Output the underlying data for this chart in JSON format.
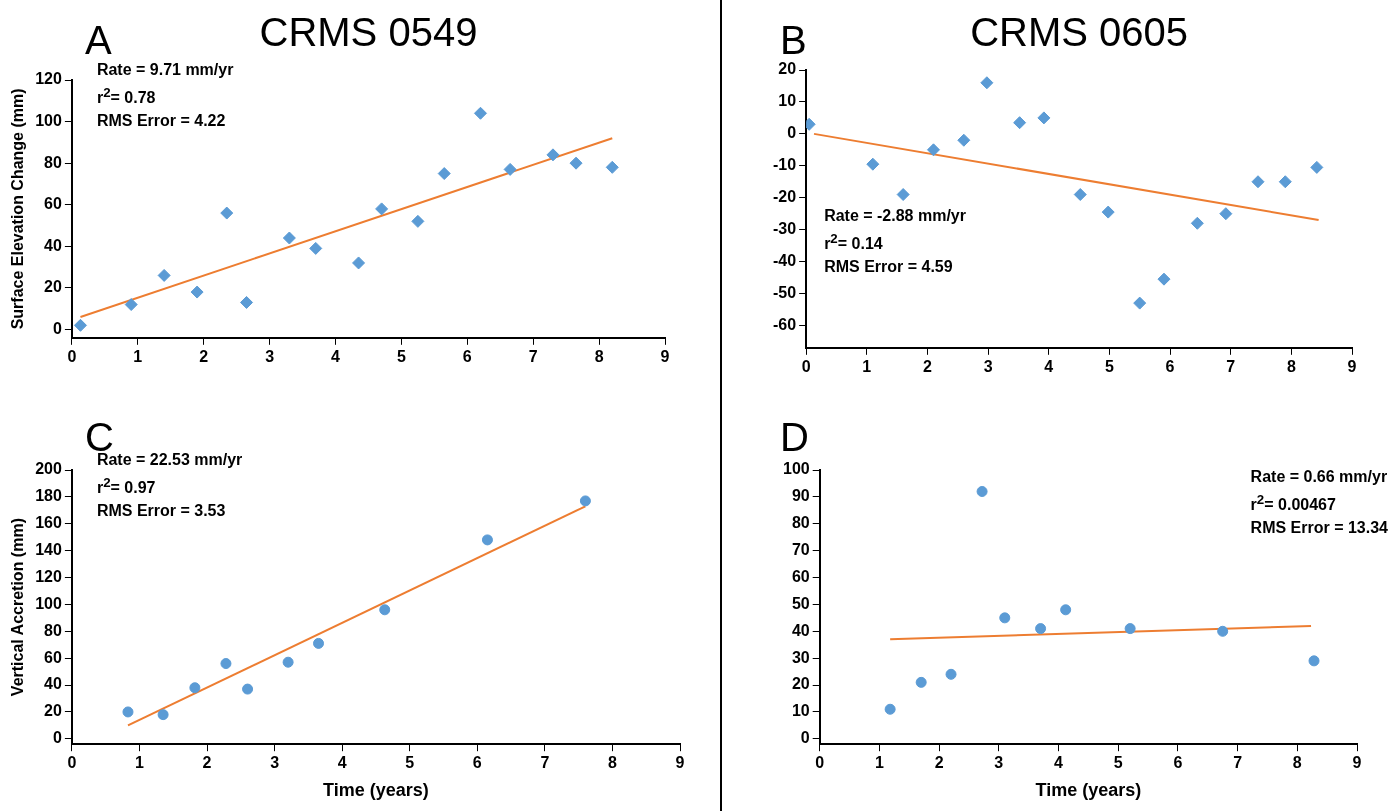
{
  "chart_data": [
    {
      "type": "scatter",
      "title": "CRMS 0549",
      "ylabel": "Surface Elevation Change (mm)",
      "marker": "diamond",
      "grid": false,
      "legend": false,
      "annotations": [
        "A",
        "Rate = 9.71 mm/yr",
        "r$^{2}$= 0.78",
        "RMS Error = 4.22"
      ],
      "xlim": [
        0,
        9
      ],
      "xticks": [
        0,
        1,
        2,
        3,
        4,
        5,
        6,
        7,
        8,
        9
      ],
      "ylim": [
        -4,
        120
      ],
      "yticks": [
        0,
        20,
        40,
        60,
        80,
        100,
        120
      ],
      "series": [
        {
          "color": "#5b9bd5",
          "x": [
            0.13,
            0.9,
            1.4,
            1.9,
            2.35,
            2.65,
            3.3,
            3.7,
            4.35,
            4.7,
            5.25,
            5.65,
            6.2,
            6.65,
            7.3,
            7.65,
            8.2
          ],
          "values": [
            2,
            12,
            26,
            18,
            56,
            13,
            44,
            39,
            32,
            58,
            52,
            75,
            104,
            77,
            84,
            80,
            78
          ]
        },
        {
          "type": "line",
          "marker": "none",
          "color": "#ed7d31",
          "x": [
            0.13,
            8.2
          ],
          "values": [
            6,
            92
          ]
        }
      ]
    },
    {
      "type": "scatter",
      "title": "CRMS 0605",
      "marker": "diamond",
      "grid": false,
      "legend": false,
      "annotations": [
        "B",
        "Rate = -2.88 mm/yr",
        "r$^{2}$= 0.14",
        "RMS Error = 4.59"
      ],
      "xlim": [
        0,
        9
      ],
      "xticks": [
        0,
        1,
        2,
        3,
        4,
        5,
        6,
        7,
        8,
        9
      ],
      "ylim": [
        -67,
        20
      ],
      "yticks": [
        -60,
        -50,
        -40,
        -30,
        -20,
        -10,
        0,
        10,
        20
      ],
      "series": [
        {
          "color": "#5b9bd5",
          "x": [
            0.05,
            1.1,
            1.6,
            2.1,
            2.6,
            2.98,
            3.52,
            3.92,
            4.52,
            4.98,
            5.5,
            5.9,
            6.45,
            6.92,
            7.45,
            7.9,
            8.42
          ],
          "values": [
            3,
            -9.5,
            -19,
            -5,
            -2,
            16,
            3.5,
            5,
            -19,
            -24.5,
            -53,
            -45.5,
            -28,
            -25,
            -15,
            -15,
            -10.5
          ]
        },
        {
          "type": "line",
          "marker": "none",
          "color": "#ed7d31",
          "x": [
            0.13,
            8.45
          ],
          "values": [
            0,
            -27
          ]
        }
      ]
    },
    {
      "type": "scatter",
      "ylabel": "Vertical Accretion (mm)",
      "xlabel": "Time (years)",
      "marker": "circle",
      "grid": false,
      "legend": false,
      "annotations": [
        "C",
        "Rate = 22.53 mm/yr",
        "r$^{2}$= 0.97",
        "RMS Error = 3.53"
      ],
      "xlim": [
        0,
        9
      ],
      "xticks": [
        0,
        1,
        2,
        3,
        4,
        5,
        6,
        7,
        8,
        9
      ],
      "ylim": [
        -4,
        200
      ],
      "yticks": [
        0,
        20,
        40,
        60,
        80,
        100,
        120,
        140,
        160,
        180,
        200
      ],
      "series": [
        {
          "color": "#5b9bd5",
          "x": [
            0.83,
            1.35,
            1.82,
            2.28,
            2.6,
            3.2,
            3.65,
            4.63,
            6.15,
            7.6
          ],
          "values": [
            20,
            18,
            38,
            56,
            37,
            57,
            71,
            96,
            148,
            177
          ]
        },
        {
          "type": "line",
          "marker": "none",
          "color": "#ed7d31",
          "x": [
            0.83,
            7.6
          ],
          "values": [
            10,
            173
          ]
        }
      ]
    },
    {
      "type": "scatter",
      "xlabel": "Time (years)",
      "marker": "circle",
      "grid": false,
      "legend": false,
      "annotations": [
        "D",
        "Rate = 0.66 mm/yr",
        "r$^{2}$= 0.00467",
        "RMS Error = 13.34"
      ],
      "xlim": [
        0,
        9
      ],
      "xticks": [
        0,
        1,
        2,
        3,
        4,
        5,
        6,
        7,
        8,
        9
      ],
      "ylim": [
        -2,
        100
      ],
      "yticks": [
        0,
        10,
        20,
        30,
        40,
        50,
        60,
        70,
        80,
        90,
        100
      ],
      "series": [
        {
          "color": "#5b9bd5",
          "x": [
            1.18,
            1.7,
            2.2,
            2.72,
            3.1,
            3.7,
            4.12,
            5.2,
            6.75,
            8.28
          ],
          "values": [
            11,
            21,
            24,
            92,
            45,
            41,
            48,
            41,
            40,
            29
          ]
        },
        {
          "type": "line",
          "marker": "none",
          "color": "#ed7d31",
          "x": [
            1.18,
            8.23
          ],
          "values": [
            37,
            42
          ]
        }
      ]
    }
  ]
}
